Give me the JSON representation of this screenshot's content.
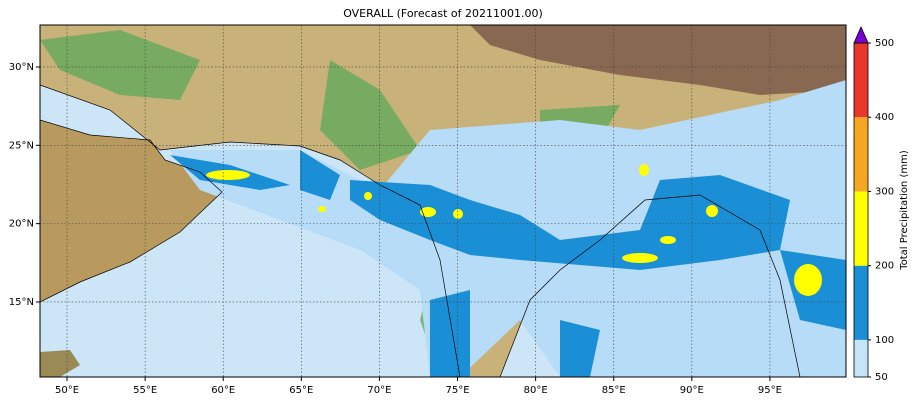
{
  "title": "OVERALL (Forecast of 20211001.00)",
  "map": {
    "xlim": [
      48.27,
      99.87
    ],
    "ylim": [
      10.21,
      32.68
    ],
    "lon_ticks": [
      {
        "value": 50,
        "label": "50°E"
      },
      {
        "value": 55,
        "label": "55°E"
      },
      {
        "value": 60,
        "label": "60°E"
      },
      {
        "value": 65,
        "label": "65°E"
      },
      {
        "value": 70,
        "label": "70°E"
      },
      {
        "value": 75,
        "label": "75°E"
      },
      {
        "value": 80,
        "label": "80°E"
      },
      {
        "value": 85,
        "label": "85°E"
      },
      {
        "value": 90,
        "label": "90°E"
      },
      {
        "value": 95,
        "label": "95°E"
      }
    ],
    "lat_ticks": [
      {
        "value": 15,
        "label": "15°N"
      },
      {
        "value": 20,
        "label": "20°N"
      },
      {
        "value": 25,
        "label": "25°N"
      },
      {
        "value": 30,
        "label": "30°N"
      }
    ],
    "grid": true
  },
  "colorbar": {
    "label": "Total Precipitation (mm)",
    "levels": [
      50,
      100,
      200,
      300,
      400,
      500
    ],
    "colors": [
      "#c6e4f8",
      "#1b8fd6",
      "#ffff00",
      "#f5a623",
      "#e8382a"
    ],
    "extend": "max",
    "over_color": "#7b00d4"
  }
}
